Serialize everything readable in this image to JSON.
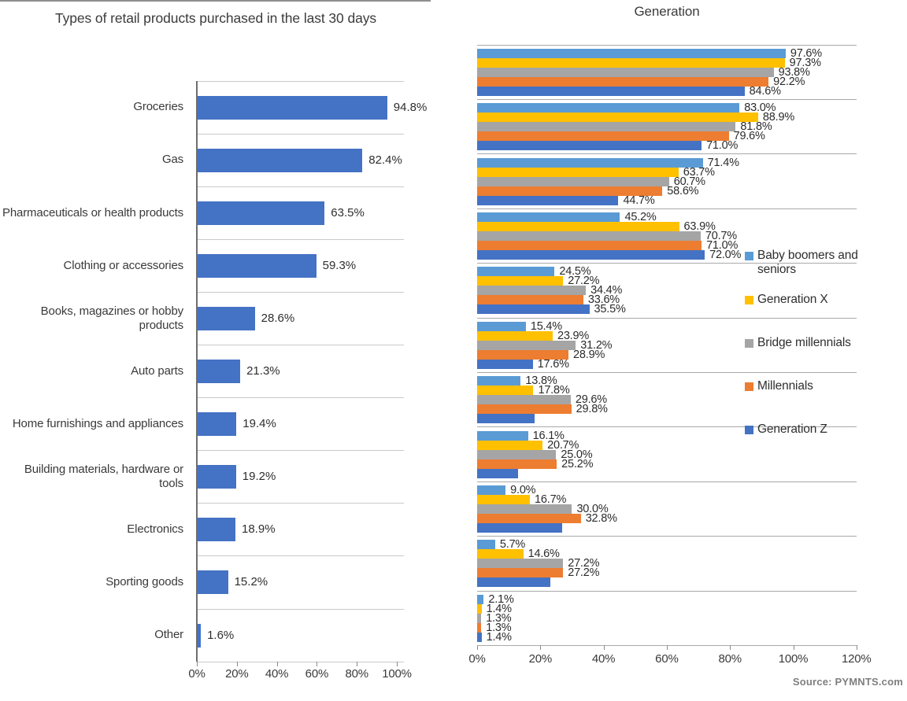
{
  "source_note": "Source: PYMNTS.com",
  "colors": {
    "left_bar": "#4472C4",
    "baby_boomers": "#5B9BD5",
    "generation_x": "#FFC000",
    "bridge_millennials": "#A5A5A5",
    "millennials": "#ED7D31",
    "generation_z": "#4472C4",
    "gridline_left": "#C9C9C9",
    "gridline_right": "#A9A9A9",
    "axis": "#6E6E6E",
    "text": "#3A3A3A",
    "source_text": "#7F7F7F"
  },
  "chart_data": [
    {
      "type": "bar",
      "orientation": "horizontal",
      "title": "Types of retail products purchased in the last 30 days",
      "categories": [
        "Groceries",
        "Gas",
        "Pharmaceuticals or health products",
        "Clothing or accessories",
        "Books, magazines or hobby products",
        "Auto parts",
        "Home furnishings and appliances",
        "Building materials, hardware or tools",
        "Electronics",
        "Sporting goods",
        "Other"
      ],
      "values": [
        94.8,
        82.4,
        63.5,
        59.3,
        28.6,
        21.3,
        19.4,
        19.2,
        18.9,
        15.2,
        1.6
      ],
      "labels": [
        "94.8%",
        "82.4%",
        "63.5%",
        "59.3%",
        "28.6%",
        "21.3%",
        "19.4%",
        "19.2%",
        "18.9%",
        "15.2%",
        "1.6%"
      ],
      "xlabel": "",
      "ylabel": "",
      "xlim": [
        0,
        100
      ],
      "x_ticks": [
        "0%",
        "20%",
        "40%",
        "60%",
        "80%",
        "100%"
      ],
      "grid": true,
      "bar_color": "#4472C4",
      "legend_position": "none"
    },
    {
      "type": "bar",
      "subtype": "grouped",
      "orientation": "horizontal",
      "title": "Generation",
      "group_note": "rows align with the 11 categories of the left chart",
      "categories": [
        "Groceries",
        "Gas",
        "Pharmaceuticals or health products",
        "Clothing or accessories",
        "Books, magazines or hobby products",
        "Auto parts",
        "Home furnishings and appliances",
        "Building materials, hardware or tools",
        "Electronics",
        "Sporting goods",
        "Other"
      ],
      "series": [
        {
          "name": "Baby boomers and seniors",
          "color": "#5B9BD5",
          "values": [
            97.6,
            83.0,
            71.4,
            45.2,
            24.5,
            15.4,
            13.8,
            16.1,
            9.0,
            5.7,
            2.1
          ],
          "labels": [
            "97.6%",
            "83.0%",
            "71.4%",
            "45.2%",
            "24.5%",
            "15.4%",
            "13.8%",
            "16.1%",
            "9.0%",
            "5.7%",
            "2.1%"
          ]
        },
        {
          "name": "Generation X",
          "color": "#FFC000",
          "values": [
            97.3,
            88.9,
            63.7,
            63.9,
            27.2,
            23.9,
            17.8,
            20.7,
            16.7,
            14.6,
            1.4
          ],
          "labels": [
            "97.3%",
            "88.9%",
            "63.7%",
            "63.9%",
            "27.2%",
            "23.9%",
            "17.8%",
            "20.7%",
            "16.7%",
            "14.6%",
            "1.4%"
          ]
        },
        {
          "name": "Bridge millennials",
          "color": "#A5A5A5",
          "values": [
            93.8,
            81.8,
            60.7,
            70.7,
            34.4,
            31.2,
            29.6,
            25.0,
            30.0,
            27.2,
            1.3
          ],
          "labels": [
            "93.8%",
            "81.8%",
            "60.7%",
            "70.7%",
            "34.4%",
            "31.2%",
            "29.6%",
            "25.0%",
            "30.0%",
            "27.2%",
            "1.3%"
          ]
        },
        {
          "name": "Millennials",
          "color": "#ED7D31",
          "values": [
            92.2,
            79.6,
            58.6,
            71.0,
            33.6,
            28.9,
            29.8,
            25.2,
            32.8,
            27.2,
            1.3
          ],
          "labels": [
            "92.2%",
            "79.6%",
            "58.6%",
            "71.0%",
            "33.6%",
            "28.9%",
            "29.8%",
            "25.2%",
            "32.8%",
            "27.2%",
            "1.3%"
          ]
        },
        {
          "name": "Generation Z",
          "color": "#4472C4",
          "values": [
            84.6,
            71.0,
            44.7,
            72.0,
            35.5,
            17.6,
            18.2,
            12.9,
            26.8,
            23.1,
            1.4
          ],
          "labels": [
            "84.6%",
            "71.0%",
            "44.7%",
            "72.0%",
            "35.5%",
            "17.6%",
            null,
            null,
            null,
            null,
            "1.4%"
          ]
        }
      ],
      "xlabel": "",
      "ylabel": "",
      "xlim": [
        0,
        120
      ],
      "x_ticks": [
        "0%",
        "20%",
        "40%",
        "60%",
        "80%",
        "100%",
        "120%"
      ],
      "grid": true,
      "legend_position": "right"
    }
  ]
}
